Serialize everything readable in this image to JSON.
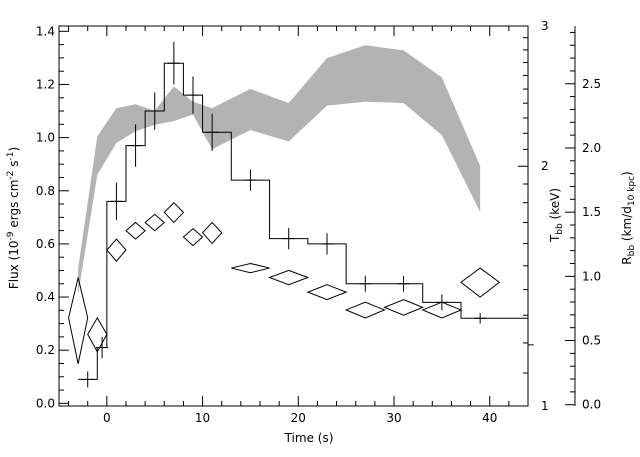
{
  "chart_data": {
    "type": "line",
    "title": "",
    "xlabel": "Time (s)",
    "xlim": [
      -5,
      44
    ],
    "grid": false,
    "axes": {
      "flux": {
        "label_main": "Flux (10",
        "label_exp1": "-9",
        "label_mid": " ergs cm",
        "label_exp2": "-2",
        "label_s": " s",
        "label_exp3": "-1",
        "label_end": ")",
        "ylim": [
          -0.01,
          1.42
        ],
        "ticks": [
          0.0,
          0.2,
          0.4,
          0.6,
          0.8,
          1.0,
          1.2,
          1.4
        ],
        "tick_labels": [
          "0.0",
          "0.2",
          "0.4",
          "0.6",
          "0.8",
          "1.0",
          "1.2",
          "1.4"
        ]
      },
      "tbb": {
        "label_main": "T",
        "label_sub": "bb",
        "label_unit": " (keV)",
        "scale": "log",
        "ylim": [
          1,
          3
        ],
        "ticks": [
          1,
          2,
          3
        ],
        "tick_labels": [
          "1",
          "2",
          "3"
        ]
      },
      "rbb": {
        "label_main": "R",
        "label_sub": "bb",
        "label_unit1": " (km/d",
        "label_sub2": "10 kpc",
        "label_unit2": ")",
        "ylim": [
          -0.01,
          2.95
        ],
        "ticks": [
          0.0,
          0.5,
          1.0,
          1.5,
          2.0,
          2.5
        ],
        "tick_labels": [
          "0.0",
          "0.5",
          "1.0",
          "1.5",
          "2.0",
          "2.5"
        ]
      }
    },
    "x_ticks": [
      0,
      10,
      20,
      30,
      40
    ],
    "x_tick_labels": [
      "0",
      "10",
      "20",
      "30",
      "40"
    ],
    "series": [
      {
        "kind": "flux_histogram",
        "axis": "flux",
        "bins": [
          {
            "x0": -3,
            "x1": -1,
            "y": 0.09,
            "xc": -2,
            "yerr": 0.03
          },
          {
            "x0": -1,
            "x1": 0,
            "y": 0.21,
            "xc": -0.5,
            "yerr": 0.04
          },
          {
            "x0": 0,
            "x1": 2,
            "y": 0.76,
            "xc": 1,
            "yerr": 0.07
          },
          {
            "x0": 2,
            "x1": 4,
            "y": 0.97,
            "xc": 3,
            "yerr": 0.08
          },
          {
            "x0": 4,
            "x1": 6,
            "y": 1.1,
            "xc": 5,
            "yerr": 0.07
          },
          {
            "x0": 6,
            "x1": 8,
            "y": 1.28,
            "xc": 7,
            "yerr": 0.08
          },
          {
            "x0": 8,
            "x1": 10,
            "y": 1.16,
            "xc": 9,
            "yerr": 0.07
          },
          {
            "x0": 10,
            "x1": 13,
            "y": 1.02,
            "xc": 11,
            "yerr": 0.07
          },
          {
            "x0": 13,
            "x1": 17,
            "y": 0.84,
            "xc": 15,
            "yerr": 0.04
          },
          {
            "x0": 17,
            "x1": 21,
            "y": 0.62,
            "xc": 19,
            "yerr": 0.04
          },
          {
            "x0": 21,
            "x1": 25,
            "y": 0.6,
            "xc": 23,
            "yerr": 0.04
          },
          {
            "x0": 25,
            "x1": 29,
            "y": 0.45,
            "xc": 27,
            "yerr": 0.03
          },
          {
            "x0": 29,
            "x1": 33,
            "y": 0.45,
            "xc": 31,
            "yerr": 0.03
          },
          {
            "x0": 33,
            "x1": 37,
            "y": 0.38,
            "xc": 35,
            "yerr": 0.03
          },
          {
            "x0": 37,
            "x1": 44,
            "y": 0.32,
            "xc": 39,
            "yerr": 0.02
          },
          {
            "x0": 44,
            "x1": 44.6,
            "y": 0.22,
            "xc": 44.3,
            "yerr": 0
          }
        ]
      },
      {
        "kind": "temperature_diamonds",
        "axis": "tbb",
        "points": [
          {
            "x": -3,
            "y": 1.29,
            "ylo": 1.13,
            "yhi": 1.45,
            "hw": 1.0
          },
          {
            "x": -1,
            "y": 1.23,
            "ylo": 1.17,
            "yhi": 1.29,
            "hw": 1.0
          },
          {
            "x": 1,
            "y": 1.57,
            "ylo": 1.52,
            "yhi": 1.62,
            "hw": 1.0
          },
          {
            "x": 3,
            "y": 1.66,
            "ylo": 1.62,
            "yhi": 1.7,
            "hw": 1.0
          },
          {
            "x": 5,
            "y": 1.7,
            "ylo": 1.66,
            "yhi": 1.74,
            "hw": 1.0
          },
          {
            "x": 7,
            "y": 1.75,
            "ylo": 1.7,
            "yhi": 1.8,
            "hw": 1.0
          },
          {
            "x": 9,
            "y": 1.63,
            "ylo": 1.59,
            "yhi": 1.67,
            "hw": 1.0
          },
          {
            "x": 11,
            "y": 1.65,
            "ylo": 1.6,
            "yhi": 1.7,
            "hw": 1.0
          },
          {
            "x": 15,
            "y": 1.49,
            "ylo": 1.47,
            "yhi": 1.51,
            "hw": 2.0
          },
          {
            "x": 19,
            "y": 1.45,
            "ylo": 1.42,
            "yhi": 1.48,
            "hw": 2.0
          },
          {
            "x": 23,
            "y": 1.39,
            "ylo": 1.36,
            "yhi": 1.42,
            "hw": 2.0
          },
          {
            "x": 27,
            "y": 1.32,
            "ylo": 1.29,
            "yhi": 1.35,
            "hw": 2.0
          },
          {
            "x": 31,
            "y": 1.33,
            "ylo": 1.3,
            "yhi": 1.36,
            "hw": 2.0
          },
          {
            "x": 35,
            "y": 1.32,
            "ylo": 1.29,
            "yhi": 1.35,
            "hw": 2.0
          },
          {
            "x": 39,
            "y": 1.43,
            "ylo": 1.37,
            "yhi": 1.49,
            "hw": 2.0
          }
        ]
      },
      {
        "kind": "radius_band",
        "axis": "rbb",
        "fill": "#b3b3b3",
        "upper": [
          {
            "x": -3,
            "y": 1.06
          },
          {
            "x": -1,
            "y": 2.09
          },
          {
            "x": 1,
            "y": 2.31
          },
          {
            "x": 3,
            "y": 2.34
          },
          {
            "x": 5,
            "y": 2.29
          },
          {
            "x": 7,
            "y": 2.48
          },
          {
            "x": 9,
            "y": 2.36
          },
          {
            "x": 11,
            "y": 2.31
          },
          {
            "x": 15,
            "y": 2.46
          },
          {
            "x": 19,
            "y": 2.35
          },
          {
            "x": 23,
            "y": 2.7
          },
          {
            "x": 27,
            "y": 2.8
          },
          {
            "x": 31,
            "y": 2.76
          },
          {
            "x": 35,
            "y": 2.55
          },
          {
            "x": 39,
            "y": 1.86
          }
        ],
        "lower": [
          {
            "x": -3,
            "y": 0.86
          },
          {
            "x": -1,
            "y": 1.79
          },
          {
            "x": 1,
            "y": 2.04
          },
          {
            "x": 3,
            "y": 2.13
          },
          {
            "x": 5,
            "y": 2.18
          },
          {
            "x": 7,
            "y": 2.21
          },
          {
            "x": 9,
            "y": 2.26
          },
          {
            "x": 11,
            "y": 1.99
          },
          {
            "x": 15,
            "y": 2.14
          },
          {
            "x": 19,
            "y": 2.05
          },
          {
            "x": 23,
            "y": 2.33
          },
          {
            "x": 27,
            "y": 2.36
          },
          {
            "x": 31,
            "y": 2.35
          },
          {
            "x": 35,
            "y": 2.1
          },
          {
            "x": 39,
            "y": 1.5
          }
        ]
      }
    ]
  }
}
